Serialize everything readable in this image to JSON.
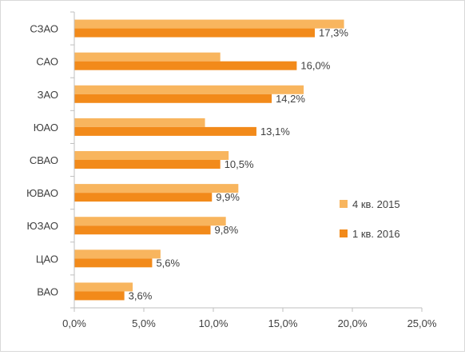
{
  "colors": {
    "series_2015": "#F8B55E",
    "series_2016": "#F28A1A",
    "axis": "#bfbfbf",
    "text": "#404040"
  },
  "chart_data": {
    "type": "bar",
    "orientation": "horizontal",
    "title": "",
    "xlabel": "",
    "ylabel": "",
    "categories": [
      "СЗАО",
      "САО",
      "ЗАО",
      "ЮАО",
      "СВАО",
      "ЮВАО",
      "ЮЗАО",
      "ЦАО",
      "ВАО"
    ],
    "series": [
      {
        "name": "4 кв. 2015",
        "values": [
          19.4,
          10.5,
          16.5,
          9.4,
          11.1,
          11.8,
          10.9,
          6.2,
          4.2
        ]
      },
      {
        "name": "1 кв. 2016",
        "values": [
          17.3,
          16.0,
          14.2,
          13.1,
          10.5,
          9.9,
          9.8,
          5.6,
          3.6
        ],
        "data_labels": [
          "17,3%",
          "16,0%",
          "14,2%",
          "13,1%",
          "10,5%",
          "9,9%",
          "9,8%",
          "5,6%",
          "3,6%"
        ]
      }
    ],
    "xlim": [
      0,
      25
    ],
    "x_ticks": [
      0,
      5,
      10,
      15,
      20,
      25
    ],
    "x_tick_labels": [
      "0,0%",
      "5,0%",
      "10,0%",
      "15,0%",
      "20,0%",
      "25,0%"
    ],
    "grid": false,
    "legend_position": "right"
  }
}
